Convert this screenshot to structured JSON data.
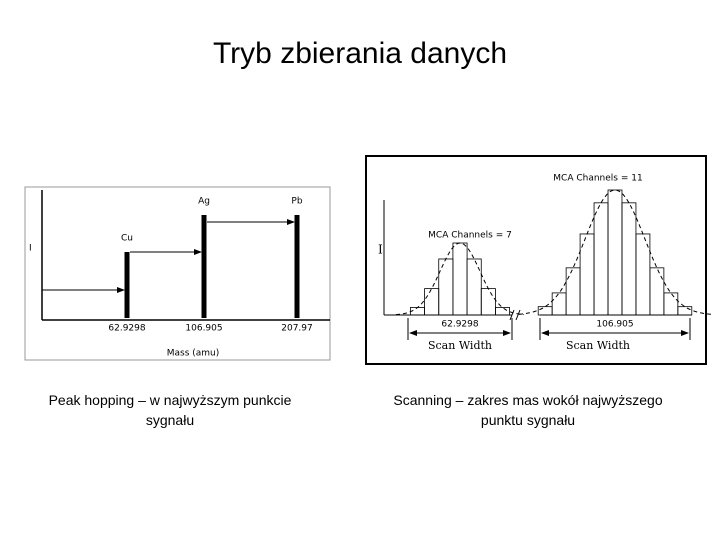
{
  "title": "Tryb zbierania danych",
  "left_figure": {
    "y_label": "I",
    "peaks": [
      {
        "element": "Cu",
        "mass": "62.9298"
      },
      {
        "element": "Ag",
        "mass": "106.905"
      },
      {
        "element": "Pb",
        "mass": "207.97"
      }
    ],
    "x_label": "Mass (amu)"
  },
  "right_figure": {
    "y_label": "I",
    "peaks": [
      {
        "channels": "MCA Channels = 7",
        "mass": "62.9298",
        "width_label": "Scan Width"
      },
      {
        "channels": "MCA Channels = 11",
        "mass": "106.905",
        "width_label": "Scan Width"
      }
    ]
  },
  "captions": [
    "Peak hopping – w najwyższym punkcie sygnału",
    "Scanning – zakres mas wokół najwyższego punktu sygnału"
  ]
}
